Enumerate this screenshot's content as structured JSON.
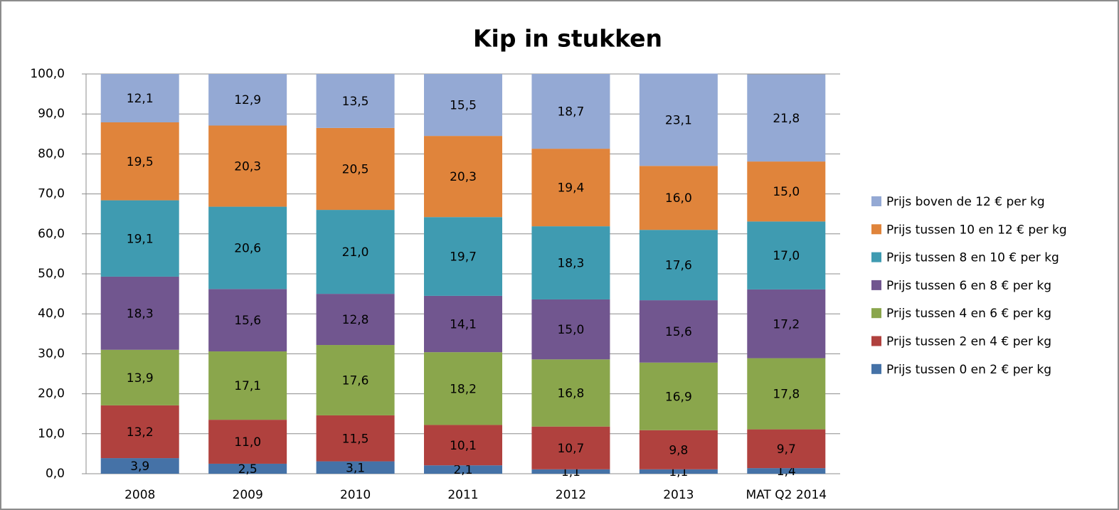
{
  "chart_data": {
    "type": "stacked_bar",
    "title": "Kip in stukken",
    "categories": [
      "2008",
      "2009",
      "2010",
      "2011",
      "2012",
      "2013",
      "MAT Q2 2014"
    ],
    "ylim": [
      0,
      100
    ],
    "yticks": [
      {
        "value": 0,
        "label": "0,0"
      },
      {
        "value": 10,
        "label": "10,0"
      },
      {
        "value": 20,
        "label": "20,0"
      },
      {
        "value": 30,
        "label": "30,0"
      },
      {
        "value": 40,
        "label": "40,0"
      },
      {
        "value": 50,
        "label": "50,0"
      },
      {
        "value": 60,
        "label": "60,0"
      },
      {
        "value": 70,
        "label": "70,0"
      },
      {
        "value": 80,
        "label": "80,0"
      },
      {
        "value": 90,
        "label": "90,0"
      },
      {
        "value": 100,
        "label": "100,0"
      }
    ],
    "grid": true,
    "legend": "right",
    "series": [
      {
        "name": "Prijs tussen 0 en 2 € per kg",
        "color": "#4572a7",
        "values": [
          3.9,
          2.5,
          3.1,
          2.1,
          1.1,
          1.1,
          1.4
        ],
        "value_labels": [
          "3,9",
          "2,5",
          "3,1",
          "2,1",
          "1,1",
          "1,1",
          "1,4"
        ]
      },
      {
        "name": "Prijs tussen 2 en 4 € per kg",
        "color": "#b0413e",
        "values": [
          13.2,
          11.0,
          11.5,
          10.1,
          10.7,
          9.8,
          9.7
        ],
        "value_labels": [
          "13,2",
          "11,0",
          "11,5",
          "10,1",
          "10,7",
          "9,8",
          "9,7"
        ]
      },
      {
        "name": "Prijs tussen 4 en 6 € per kg",
        "color": "#8aa64c",
        "values": [
          13.9,
          17.1,
          17.6,
          18.2,
          16.8,
          16.9,
          17.8
        ],
        "value_labels": [
          "13,9",
          "17,1",
          "17,6",
          "18,2",
          "16,8",
          "16,9",
          "17,8"
        ]
      },
      {
        "name": "Prijs tussen 6 en 8 € per kg",
        "color": "#71568f",
        "values": [
          18.3,
          15.6,
          12.8,
          14.1,
          15.0,
          15.6,
          17.2
        ],
        "value_labels": [
          "18,3",
          "15,6",
          "12,8",
          "14,1",
          "15,0",
          "15,6",
          "17,2"
        ]
      },
      {
        "name": "Prijs tussen 8 en 10 € per kg",
        "color": "#3f9bb1",
        "values": [
          19.1,
          20.6,
          21.0,
          19.7,
          18.3,
          17.6,
          17.0
        ],
        "value_labels": [
          "19,1",
          "20,6",
          "21,0",
          "19,7",
          "18,3",
          "17,6",
          "17,0"
        ]
      },
      {
        "name": "Prijs tussen 10 en 12 € per kg",
        "color": "#e0843b",
        "values": [
          19.5,
          20.3,
          20.5,
          20.3,
          19.4,
          16.0,
          15.0
        ],
        "value_labels": [
          "19,5",
          "20,3",
          "20,5",
          "20,3",
          "19,4",
          "16,0",
          "15,0"
        ]
      },
      {
        "name": "Prijs boven de 12 € per kg",
        "color": "#94a9d4",
        "values": [
          12.1,
          12.9,
          13.5,
          15.5,
          18.7,
          23.1,
          21.8
        ],
        "value_labels": [
          "12,1",
          "12,9",
          "13,5",
          "15,5",
          "18,7",
          "23,1",
          "21,8"
        ]
      }
    ]
  }
}
